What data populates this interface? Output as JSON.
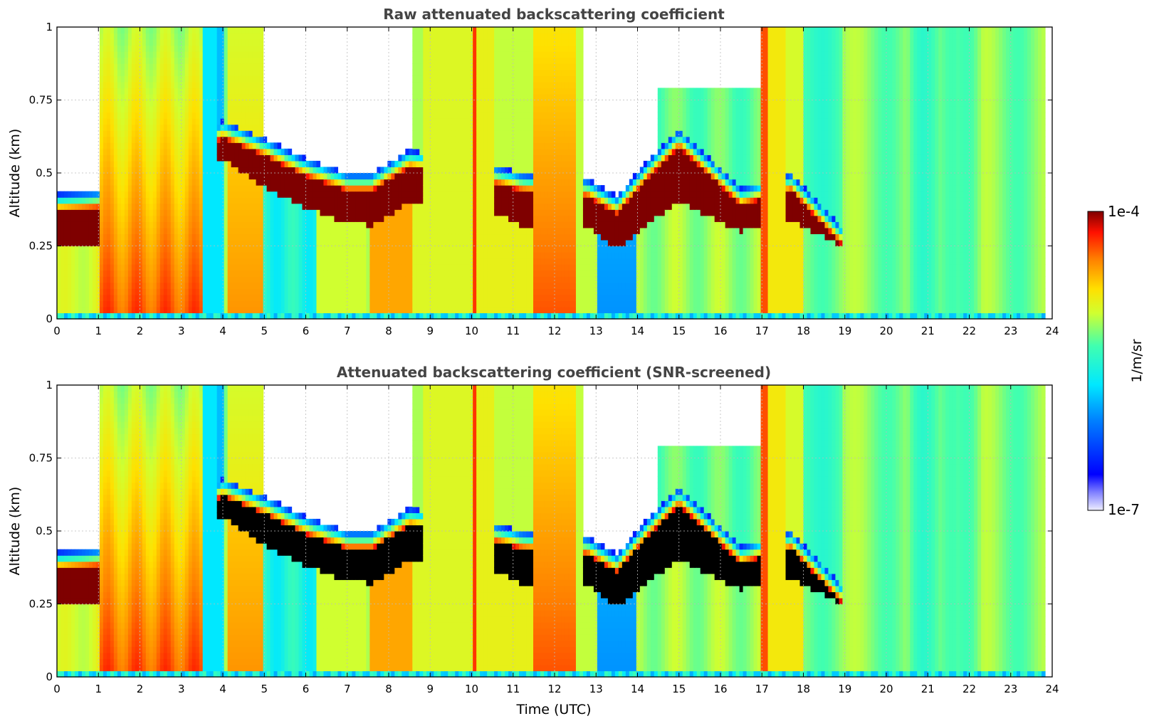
{
  "chart_data": [
    {
      "type": "heatmap",
      "title": "Raw attenuated backscattering coefficient",
      "xlabel": "",
      "ylabel": "Altitude (km)",
      "xlim": [
        0,
        24
      ],
      "ylim": [
        0,
        1
      ],
      "xticks": [
        "0",
        "1",
        "2",
        "3",
        "4",
        "5",
        "6",
        "7",
        "8",
        "9",
        "10",
        "11",
        "12",
        "13",
        "14",
        "15",
        "16",
        "17",
        "18",
        "19",
        "20",
        "21",
        "22",
        "23",
        "24"
      ],
      "yticks": [
        "0",
        "0.25",
        "0.5",
        "0.75",
        "1"
      ],
      "grid": true,
      "snr_screened": false,
      "cloud_base_km": [
        {
          "t": 0.0,
          "base": 0.25,
          "top": 0.43
        },
        {
          "t": 1.0,
          "base": 0.25,
          "top": 0.44
        },
        {
          "t": 4.0,
          "base": 0.55,
          "top": 0.68
        },
        {
          "t": 5.0,
          "base": 0.45,
          "top": 0.62
        },
        {
          "t": 6.0,
          "base": 0.38,
          "top": 0.55
        },
        {
          "t": 7.0,
          "base": 0.33,
          "top": 0.5
        },
        {
          "t": 7.6,
          "base": 0.32,
          "top": 0.5
        },
        {
          "t": 8.5,
          "base": 0.4,
          "top": 0.58
        },
        {
          "t": 10.7,
          "base": 0.36,
          "top": 0.52
        },
        {
          "t": 11.2,
          "base": 0.32,
          "top": 0.5
        },
        {
          "t": 12.8,
          "base": 0.32,
          "top": 0.48
        },
        {
          "t": 13.5,
          "base": 0.24,
          "top": 0.42
        },
        {
          "t": 14.3,
          "base": 0.33,
          "top": 0.55
        },
        {
          "t": 15.0,
          "base": 0.4,
          "top": 0.65
        },
        {
          "t": 16.5,
          "base": 0.3,
          "top": 0.45
        },
        {
          "t": 17.7,
          "base": 0.34,
          "top": 0.5
        },
        {
          "t": 18.9,
          "base": 0.25,
          "top": 0.32
        }
      ]
    },
    {
      "type": "heatmap",
      "title": "Attenuated backscattering coefficient (SNR-screened)",
      "xlabel": "Time (UTC)",
      "ylabel": "Altitude (km)",
      "xlim": [
        0,
        24
      ],
      "ylim": [
        0,
        1
      ],
      "xticks": [
        "0",
        "1",
        "2",
        "3",
        "4",
        "5",
        "6",
        "7",
        "8",
        "9",
        "10",
        "11",
        "12",
        "13",
        "14",
        "15",
        "16",
        "17",
        "18",
        "19",
        "20",
        "21",
        "22",
        "23",
        "24"
      ],
      "yticks": [
        "0",
        "0.25",
        "0.5",
        "0.75",
        "1"
      ],
      "grid": true,
      "snr_screened": true
    }
  ],
  "colorbar": {
    "label": "1/m/sr",
    "min_label": "1e-7",
    "max_label": "1e-4",
    "scale": "log",
    "colormap": "jet"
  },
  "colors": {
    "title": "#444444",
    "screened": "#000000",
    "grid": "#bbbbbb"
  }
}
